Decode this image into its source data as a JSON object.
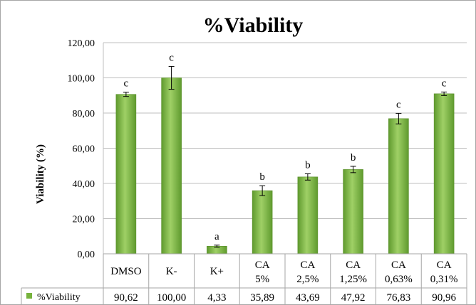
{
  "chart_data": {
    "type": "bar",
    "title": "%Viability",
    "ylabel": "Viability (%)",
    "xlabel": "",
    "ylim": [
      0,
      120
    ],
    "y_ticks": [
      "0,00",
      "20,00",
      "40,00",
      "60,00",
      "80,00",
      "100,00",
      "120,00"
    ],
    "grid": true,
    "legend": "data-table-row",
    "categories": [
      [
        "DMSO"
      ],
      [
        "K-"
      ],
      [
        "K+"
      ],
      [
        "CA",
        "5%"
      ],
      [
        "CA",
        "2,5%"
      ],
      [
        "CA",
        "1,25%"
      ],
      [
        "CA",
        "0,63%"
      ],
      [
        "CA",
        "0,31%"
      ]
    ],
    "series": [
      {
        "name": "%Viability",
        "values": [
          90.62,
          100.0,
          4.33,
          35.89,
          43.69,
          47.92,
          76.83,
          90.96
        ],
        "value_labels": [
          "90,62",
          "100,00",
          "4,33",
          "35,89",
          "43,69",
          "47,92",
          "76,83",
          "90,96"
        ],
        "errors": [
          1.2,
          6.5,
          0.6,
          2.8,
          1.8,
          1.8,
          3.0,
          1.0
        ],
        "significance_letters": [
          "c",
          "c",
          "a",
          "b",
          "b",
          "b",
          "c",
          "c"
        ],
        "color": "#77b33d"
      }
    ]
  }
}
